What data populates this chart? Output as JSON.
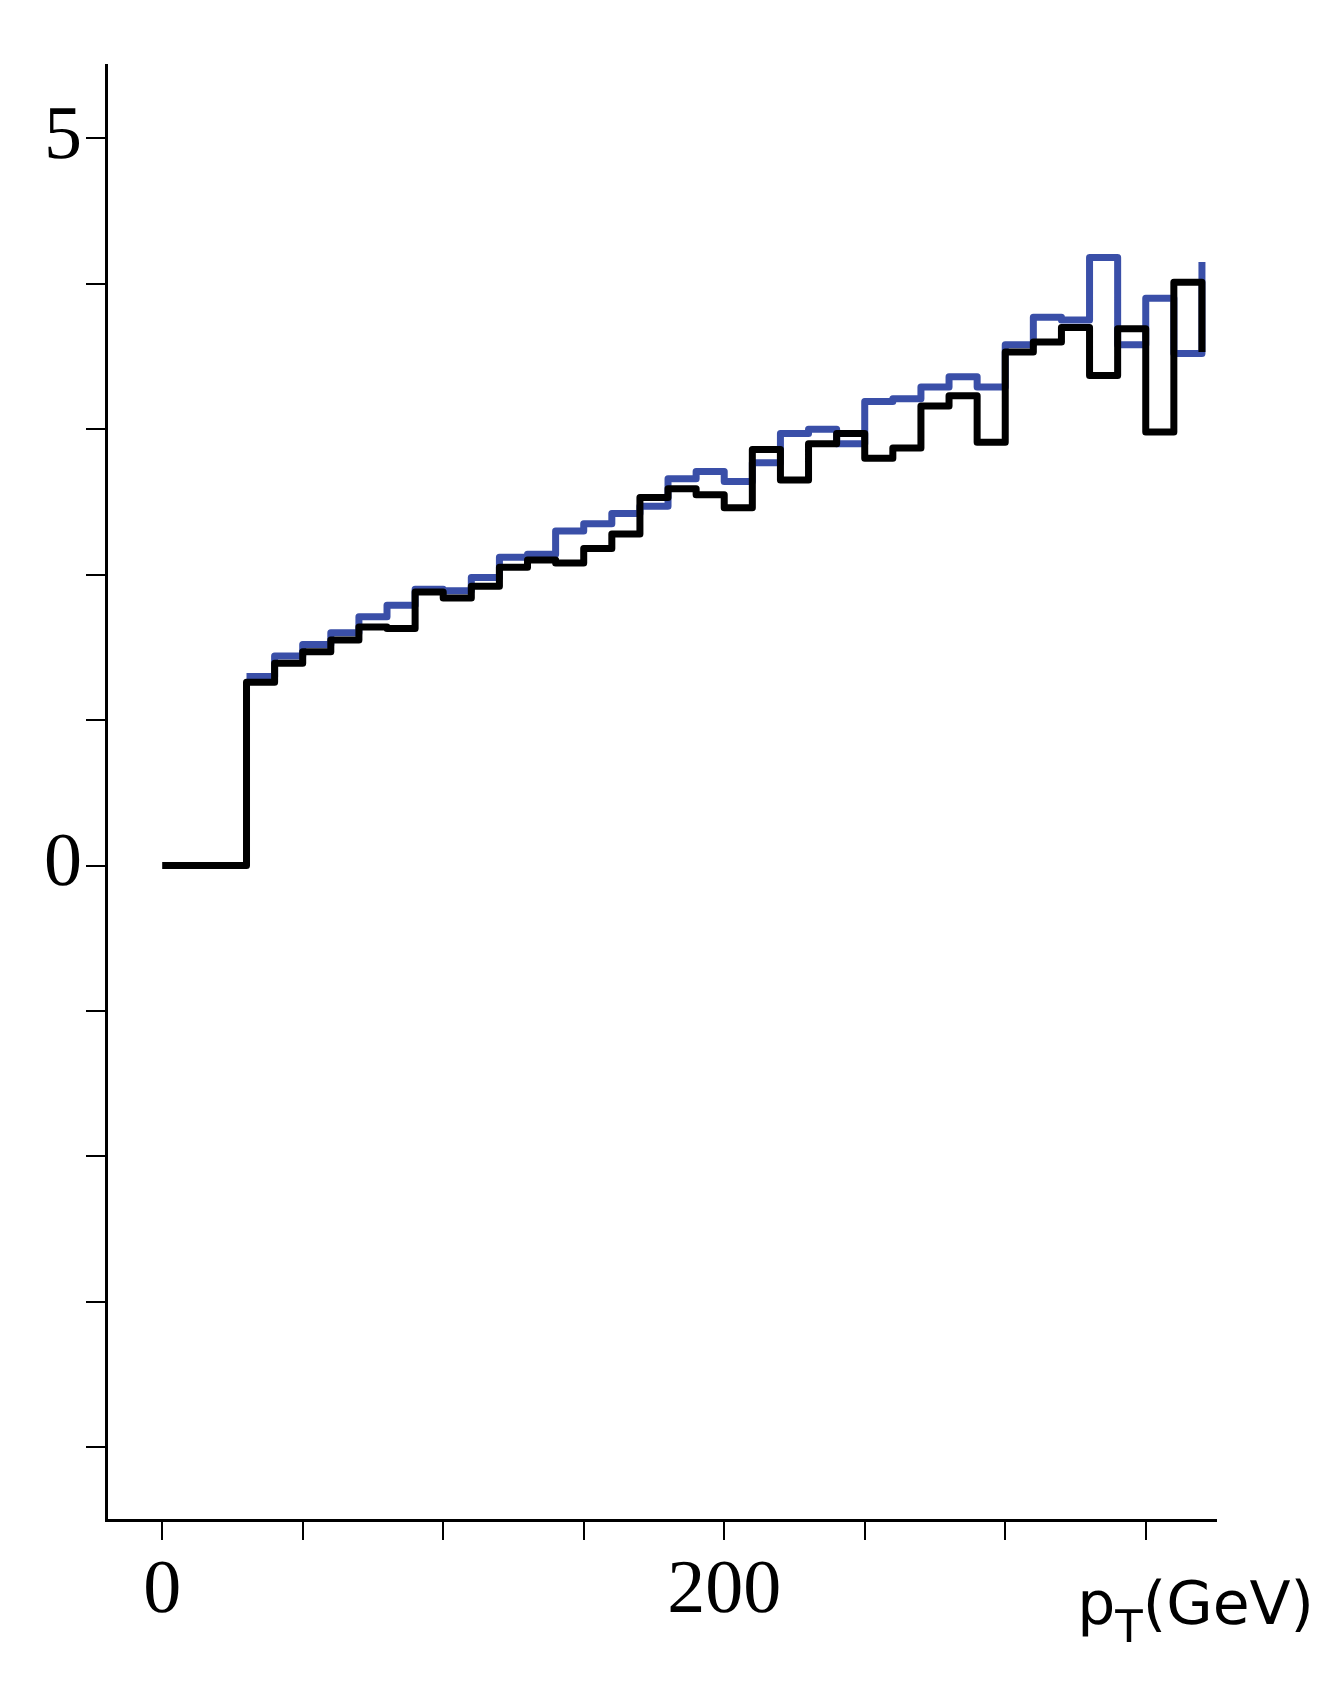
{
  "chart_data": {
    "type": "step",
    "xlabel": "p$_{T}$(GeV)",
    "x": [
      0,
      10,
      20,
      30,
      40,
      50,
      60,
      70,
      80,
      90,
      100,
      110,
      120,
      130,
      140,
      150,
      160,
      170,
      180,
      190,
      200,
      210,
      220,
      230,
      240,
      250,
      260,
      270,
      280,
      290,
      300,
      310,
      320,
      330,
      340,
      350,
      360,
      370
    ],
    "series": [
      {
        "color": "#000000",
        "values": [
          0,
          0,
          0,
          1.26,
          1.39,
          1.47,
          1.55,
          1.64,
          1.63,
          1.88,
          1.84,
          1.92,
          2.05,
          2.1,
          2.08,
          2.18,
          2.28,
          2.53,
          2.59,
          2.55,
          2.46,
          2.86,
          2.65,
          2.9,
          2.97,
          2.8,
          2.87,
          3.16,
          3.23,
          2.91,
          3.53,
          3.6,
          3.7,
          3.37,
          3.69,
          2.98,
          4.01,
          3.53
        ]
      },
      {
        "color": "#3a4fa8",
        "values": [
          null,
          null,
          null,
          1.3,
          1.44,
          1.52,
          1.6,
          1.71,
          1.79,
          1.9,
          1.89,
          1.98,
          2.12,
          2.14,
          2.3,
          2.35,
          2.42,
          2.47,
          2.66,
          2.71,
          2.64,
          2.77,
          2.97,
          3.0,
          2.9,
          3.19,
          3.21,
          3.29,
          3.36,
          3.29,
          3.58,
          3.77,
          3.75,
          4.18,
          3.58,
          3.9,
          3.52,
          4.15
        ]
      }
    ],
    "xlim": [
      -20,
      375
    ],
    "ylim": [
      -4.5,
      5.5
    ],
    "xticks": [
      0,
      {
        "value": 50,
        "label": null
      },
      {
        "value": 100,
        "label": null
      },
      {
        "value": 150,
        "label": null
      },
      200,
      {
        "value": 250,
        "label": null
      },
      {
        "value": 300,
        "label": null
      },
      {
        "value": 350,
        "label": null
      }
    ],
    "yticks": [
      {
        "value": -4,
        "label": null
      },
      {
        "value": -3,
        "label": null
      },
      {
        "value": -2,
        "label": null
      },
      {
        "value": -1,
        "label": null
      },
      0,
      {
        "value": 1,
        "label": null
      },
      {
        "value": 2,
        "label": null
      },
      {
        "value": 3,
        "label": null
      },
      {
        "value": 4,
        "label": null
      },
      5
    ],
    "grid": false,
    "legend": false
  }
}
